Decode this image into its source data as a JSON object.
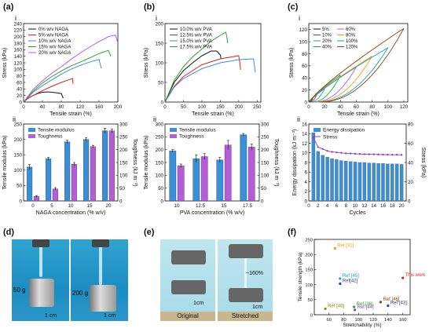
{
  "panels": {
    "a": {
      "label": "(a)"
    },
    "b": {
      "label": "(b)"
    },
    "c": {
      "label": "(c)"
    },
    "d": {
      "label": "(d)"
    },
    "e": {
      "label": "(e)"
    },
    "f": {
      "label": "(f)"
    }
  },
  "sublabels": {
    "i": "i",
    "ii": "ii"
  },
  "photos": {
    "d": {
      "weight1": "50 g",
      "weight2": "200 g",
      "scale1": "1 cm",
      "scale2": "1 cm"
    },
    "e": {
      "original": "Original",
      "stretched": "Stretched",
      "strain": "~160%",
      "scale1": "1cm",
      "scale2": "1cm"
    }
  },
  "colors": {
    "blue": "#3a8fd9",
    "purple": "#b35ddb",
    "black": "#111111",
    "red": "#e0201b",
    "navy": "#2f3fa8",
    "green": "#2ca02c",
    "orange": "#f39c12",
    "teal": "#17a2b8",
    "olive": "#8b8b00",
    "violet": "#8e44ad",
    "brown": "#8b4513"
  },
  "chart_data": [
    {
      "id": "a-i",
      "type": "line",
      "xlabel": "Tensile strain (%)",
      "ylabel": "Stress (kPa)",
      "xlim": [
        0,
        200
      ],
      "ylim": [
        0,
        240
      ],
      "xticks": [
        0,
        40,
        80,
        120,
        160,
        200
      ],
      "yticks": [
        0,
        20,
        40,
        60,
        80,
        100,
        120,
        140,
        160,
        180,
        200,
        220,
        240
      ],
      "series": [
        {
          "name": "0% w/v NAGA",
          "color": "#111111",
          "x": [
            0,
            10,
            20,
            30,
            40,
            50,
            60,
            70,
            80,
            84
          ],
          "y": [
            0,
            12,
            20,
            26,
            30,
            31,
            30,
            28,
            26,
            12
          ]
        },
        {
          "name": "5% w/v NAGA",
          "color": "#e0201b",
          "x": [
            0,
            10,
            20,
            40,
            60,
            80,
            100,
            104,
            105
          ],
          "y": [
            0,
            12,
            20,
            35,
            48,
            60,
            70,
            72,
            55
          ]
        },
        {
          "name": "10% w/v NAGA",
          "color": "#3a8fd9",
          "x": [
            0,
            20,
            40,
            60,
            80,
            100,
            120,
            140,
            160,
            165
          ],
          "y": [
            0,
            30,
            50,
            68,
            85,
            100,
            112,
            122,
            130,
            103
          ]
        },
        {
          "name": "15% w/v NAGA",
          "color": "#2ca02c",
          "x": [
            0,
            20,
            40,
            60,
            80,
            100,
            120,
            140,
            160,
            180,
            185
          ],
          "y": [
            0,
            33,
            58,
            78,
            95,
            110,
            122,
            135,
            148,
            158,
            140
          ]
        },
        {
          "name": "20% w/v NAGA",
          "color": "#b35ddb",
          "x": [
            0,
            20,
            40,
            60,
            80,
            100,
            120,
            140,
            160,
            180,
            195,
            200
          ],
          "y": [
            0,
            38,
            65,
            88,
            108,
            130,
            150,
            168,
            185,
            200,
            205,
            180
          ]
        }
      ]
    },
    {
      "id": "a-ii",
      "type": "bar",
      "xlabel": "NAGA concentration (% w/v)",
      "ylabel": "Tensile modulus (kPa)",
      "ylabel2": "Toughness (kJ m⁻³)",
      "categories": [
        "0",
        "5",
        "10",
        "15",
        "20"
      ],
      "ylim": [
        0,
        250
      ],
      "ylim2": [
        0,
        300
      ],
      "yticks": [
        0,
        50,
        100,
        150,
        200,
        250
      ],
      "yticks2": [
        0,
        50,
        100,
        150,
        200,
        250,
        300
      ],
      "series": [
        {
          "name": "Tensile modulus",
          "color": "#3a8fd9",
          "axis": "left",
          "values": [
            110,
            137,
            192,
            200,
            228
          ],
          "errors": [
            8,
            5,
            5,
            6,
            8
          ]
        },
        {
          "name": "Toughness",
          "color": "#b35ddb",
          "axis": "right",
          "values": [
            18,
            47,
            143,
            212,
            273
          ],
          "errors": [
            3,
            5,
            7,
            5,
            8
          ]
        }
      ]
    },
    {
      "id": "b-i",
      "type": "line",
      "xlabel": "Tensile strain (%)",
      "ylabel": "Stress (kPa)",
      "xlim": [
        0,
        260
      ],
      "ylim": [
        0,
        200
      ],
      "xticks": [
        0,
        50,
        100,
        150,
        200,
        250
      ],
      "yticks": [
        0,
        50,
        100,
        150,
        200
      ],
      "series": [
        {
          "name": "10.0% w/v PVA",
          "color": "#111111",
          "x": [
            0,
            25,
            50,
            75,
            100,
            125,
            140,
            150,
            152
          ],
          "y": [
            0,
            50,
            80,
            100,
            118,
            130,
            130,
            120,
            110
          ]
        },
        {
          "name": "12.5% w/v PVA",
          "color": "#e0201b",
          "x": [
            0,
            25,
            50,
            100,
            150,
            200,
            203,
            205
          ],
          "y": [
            0,
            40,
            65,
            95,
            110,
            118,
            100,
            82
          ]
        },
        {
          "name": "15.0% w/v PVA",
          "color": "#3a8fd9",
          "x": [
            0,
            25,
            50,
            100,
            150,
            200,
            240,
            245
          ],
          "y": [
            0,
            38,
            60,
            85,
            100,
            108,
            110,
            75
          ]
        },
        {
          "name": "17.5% w/v PVA",
          "color": "#2ca02c",
          "x": [
            0,
            25,
            50,
            75,
            100,
            125,
            150,
            165,
            168,
            170
          ],
          "y": [
            0,
            55,
            90,
            115,
            135,
            155,
            170,
            178,
            165,
            150
          ]
        }
      ]
    },
    {
      "id": "b-ii",
      "type": "bar",
      "xlabel": "PVA concentration (% w/v)",
      "ylabel": "Tensile modulus (kPa)",
      "ylabel2": "Toughness (kJ m⁻³)",
      "categories": [
        "10",
        "12.5",
        "15",
        "17.5"
      ],
      "ylim": [
        0,
        300
      ],
      "ylim2": [
        0,
        300
      ],
      "yticks": [
        0,
        50,
        100,
        150,
        200,
        250,
        300
      ],
      "yticks2": [
        0,
        50,
        100,
        150,
        200,
        250,
        300
      ],
      "series": [
        {
          "name": "Tensile modulus",
          "color": "#3a8fd9",
          "axis": "left",
          "values": [
            195,
            165,
            160,
            258
          ],
          "errors": [
            5,
            15,
            10,
            5
          ]
        },
        {
          "name": "Toughness",
          "color": "#b35ddb",
          "axis": "right",
          "values": [
            137,
            173,
            218,
            210
          ],
          "errors": [
            7,
            12,
            18,
            12
          ]
        }
      ]
    },
    {
      "id": "c-i",
      "type": "line",
      "xlabel": "Tensile strain (%)",
      "ylabel": "Stress (kPa)",
      "xlim": [
        0,
        125
      ],
      "ylim": [
        0,
        130
      ],
      "xticks": [
        0,
        20,
        40,
        60,
        80,
        100,
        120
      ],
      "yticks": [
        0,
        20,
        40,
        60,
        80,
        100,
        120
      ],
      "series": [
        {
          "name": "5%",
          "color": "#111111",
          "peak": [
            5,
            6
          ]
        },
        {
          "name": "10%",
          "color": "#e0201b",
          "peak": [
            10,
            12
          ]
        },
        {
          "name": "20%",
          "color": "#3a8fd9",
          "peak": [
            20,
            22
          ]
        },
        {
          "name": "40%",
          "color": "#2ca02c",
          "peak": [
            40,
            45
          ]
        },
        {
          "name": "60%",
          "color": "#b35ddb",
          "peak": [
            60,
            58
          ]
        },
        {
          "name": "80%",
          "color": "#f39c12",
          "peak": [
            80,
            76
          ]
        },
        {
          "name": "100%",
          "color": "#17a2b8",
          "peak": [
            100,
            90
          ]
        },
        {
          "name": "120%",
          "color": "#8b4513",
          "peak": [
            120,
            122
          ]
        }
      ]
    },
    {
      "id": "c-ii",
      "type": "bar",
      "xlabel": "Cycles",
      "ylabel": "Energy dissipation (kJ m⁻³)",
      "ylabel2": "Stress (kPa)",
      "categories": [
        "1",
        "2",
        "3",
        "4",
        "5",
        "6",
        "7",
        "8",
        "9",
        "10",
        "11",
        "12",
        "13",
        "14",
        "15",
        "16",
        "17",
        "18",
        "19",
        "20"
      ],
      "xticks": [
        0,
        2,
        4,
        6,
        8,
        10,
        12,
        14,
        16,
        18,
        20
      ],
      "ylim": [
        0,
        16
      ],
      "ylim2": [
        0,
        80
      ],
      "yticks": [
        0,
        2,
        4,
        6,
        8,
        10,
        12,
        14,
        16
      ],
      "yticks2": [
        0,
        20,
        40,
        60,
        80
      ],
      "series": [
        {
          "name": "Energy dissipation",
          "color": "#3a8fd9",
          "axis": "left",
          "values": [
            14.2,
            10.3,
            9.5,
            9.1,
            8.8,
            8.6,
            8.4,
            8.3,
            8.2,
            8.1,
            8.0,
            8.0,
            7.9,
            7.9,
            7.8,
            7.8,
            7.7,
            7.7,
            7.7,
            7.6
          ]
        },
        {
          "name": "Stress",
          "color": "#8e44ad",
          "axis": "right",
          "values": [
            66,
            56,
            54,
            52,
            51,
            50.5,
            50,
            49.5,
            49.3,
            49,
            48.8,
            48.6,
            48.5,
            48.4,
            48.3,
            48.2,
            48.1,
            48,
            48,
            47.9
          ]
        }
      ]
    },
    {
      "id": "f",
      "type": "scatter",
      "xlabel": "Stretchability (%)",
      "ylabel": "Tensile strength (kPa)",
      "xlim": [
        40,
        170
      ],
      "ylim": [
        0,
        250
      ],
      "xticks": [
        60,
        80,
        100,
        120,
        140,
        160
      ],
      "yticks": [
        0,
        50,
        100,
        150,
        200,
        250
      ],
      "points": [
        {
          "label": "Ref [31]",
          "x": 68,
          "y": 220,
          "color": "#f39c12"
        },
        {
          "label": "Ref [45]",
          "x": 75,
          "y": 120,
          "color": "#17a2b8"
        },
        {
          "label": "Ref[42]",
          "x": 75,
          "y": 103,
          "color": "#2f3fa8"
        },
        {
          "label": "This work",
          "x": 160,
          "y": 122,
          "color": "#e0201b"
        },
        {
          "label": "Ref [46]",
          "x": 130,
          "y": 42,
          "color": "#8b4513"
        },
        {
          "label": "Ref [38]",
          "x": 94,
          "y": 26,
          "color": "#2ca02c"
        },
        {
          "label": "Ref [46]",
          "x": 55,
          "y": 20,
          "color": "#8b8b00"
        },
        {
          "label": "Ref [44]",
          "x": 95,
          "y": 16,
          "color": "#8e44ad"
        },
        {
          "label": "Ref [43]",
          "x": 140,
          "y": 30,
          "color": "#2f3fa8"
        }
      ]
    }
  ]
}
